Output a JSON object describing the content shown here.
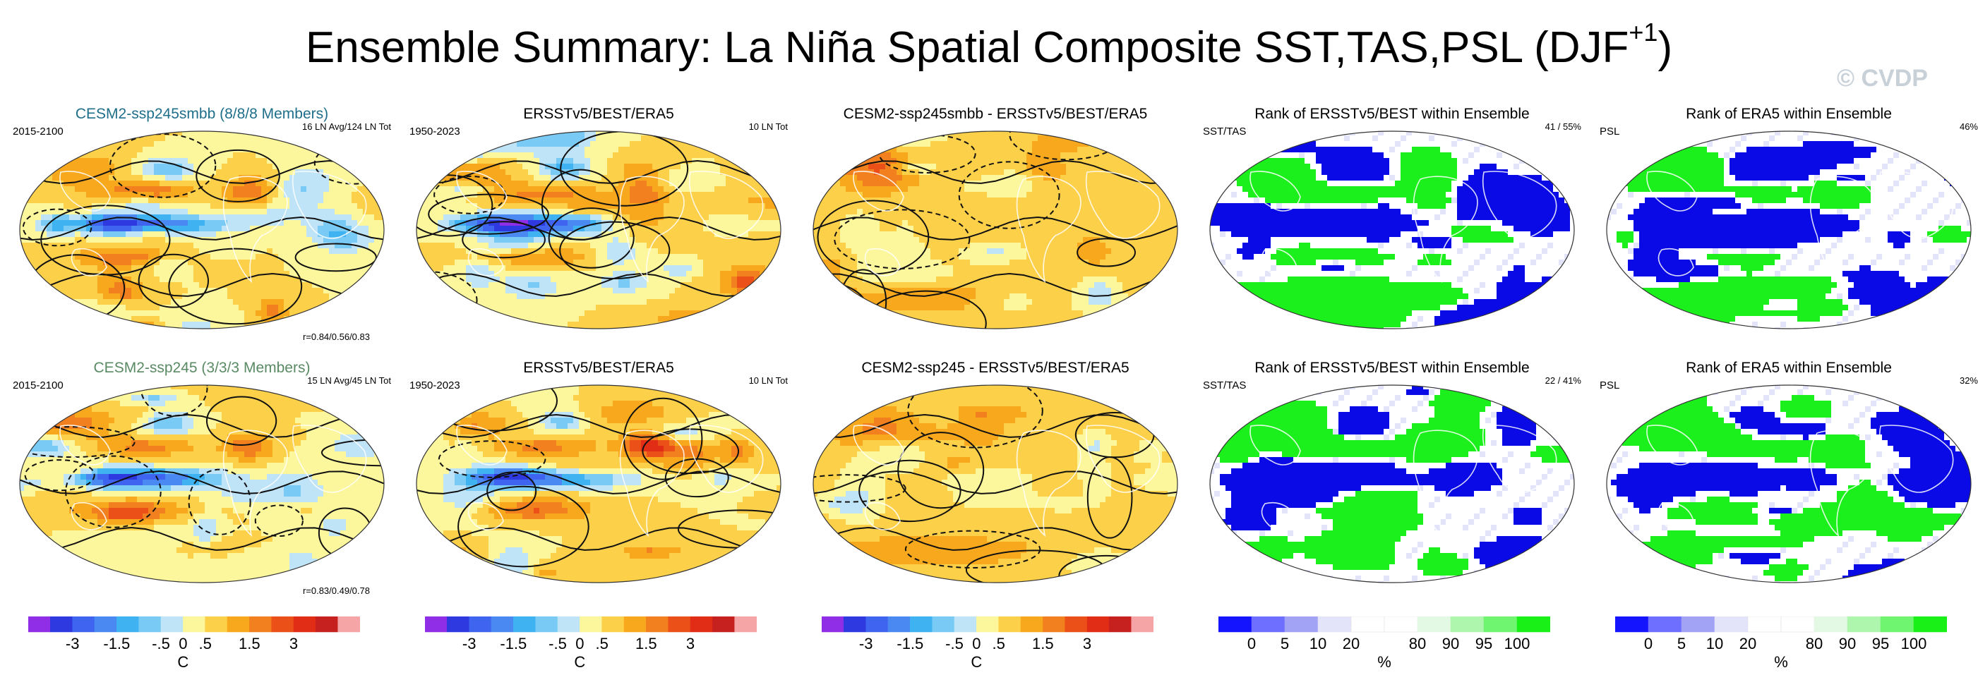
{
  "title": {
    "main": "Ensemble Summary: La Niña Spatial Composite SST,TAS,PSL (DJF",
    "sup": "+1",
    "close": ")"
  },
  "copyright": "© CVDP",
  "colors": {
    "temp_scale": [
      "#8f2ee6",
      "#2e39e0",
      "#3f64ef",
      "#4b89f2",
      "#3fb2f2",
      "#79cbf5",
      "#bfe3f7",
      "#fcf69c",
      "#fdd04a",
      "#f7a81d",
      "#f3801f",
      "#ec5019",
      "#e12d16",
      "#c6201f",
      "#f5a5a5"
    ],
    "rank_scale": [
      "#1414ff",
      "#6f6fff",
      "#a3a3f5",
      "#e3e3f9",
      "#ffffff",
      "#ffffff",
      "#e3f9e3",
      "#aef5ae",
      "#6ff56f",
      "#18f018"
    ],
    "ocean_base": "#a9d4ef",
    "rank_low": "#0a0ae6",
    "rank_high": "#1cf01c"
  },
  "panels": [
    {
      "row": 1,
      "col": 1,
      "title": "CESM2-ssp245smbb (8/8/8 Members)",
      "title_color": "teal",
      "left": "2015-2100",
      "right": "16 LN Avg/124 LN Tot",
      "bottom": "r=0.84/0.56/0.83",
      "kind": "temp"
    },
    {
      "row": 1,
      "col": 2,
      "title": "ERSSTv5/BEST/ERA5",
      "left": "1950-2023",
      "right": "10 LN Tot",
      "bottom": "",
      "kind": "temp"
    },
    {
      "row": 1,
      "col": 3,
      "title": "CESM2-ssp245smbb - ERSSTv5/BEST/ERA5",
      "left": "",
      "right": "",
      "bottom": "",
      "kind": "diff"
    },
    {
      "row": 1,
      "col": 4,
      "title": "Rank of ERSSTv5/BEST within Ensemble",
      "left": "SST/TAS",
      "right": "41 /  55%",
      "bottom": "",
      "kind": "rank"
    },
    {
      "row": 1,
      "col": 5,
      "title": "Rank of ERA5 within Ensemble",
      "left": "PSL",
      "right": "46%",
      "bottom": "",
      "kind": "rank"
    },
    {
      "row": 2,
      "col": 1,
      "title": "CESM2-ssp245 (3/3/3 Members)",
      "title_color": "green",
      "left": "2015-2100",
      "right": "15 LN Avg/45 LN Tot",
      "bottom": "r=0.83/0.49/0.78",
      "kind": "temp"
    },
    {
      "row": 2,
      "col": 2,
      "title": "ERSSTv5/BEST/ERA5",
      "left": "1950-2023",
      "right": "10 LN Tot",
      "bottom": "",
      "kind": "temp"
    },
    {
      "row": 2,
      "col": 3,
      "title": "CESM2-ssp245 - ERSSTv5/BEST/ERA5",
      "left": "",
      "right": "",
      "bottom": "",
      "kind": "diff"
    },
    {
      "row": 2,
      "col": 4,
      "title": "Rank of ERSSTv5/BEST within Ensemble",
      "left": "SST/TAS",
      "right": "22 /  41%",
      "bottom": "",
      "kind": "rank"
    },
    {
      "row": 2,
      "col": 5,
      "title": "Rank of ERA5 within Ensemble",
      "left": "PSL",
      "right": "32%",
      "bottom": "",
      "kind": "rank"
    }
  ],
  "chart_data": {
    "type": "heatmap",
    "title": "Ensemble Summary: La Niña Spatial Composite SST,TAS,PSL (DJF+1)",
    "temperature_colorbar": {
      "unit": "C",
      "levels": [
        -3.5,
        -3,
        -2.5,
        -2,
        -1.5,
        -1,
        -0.5,
        0,
        0.5,
        1,
        1.5,
        2,
        2.5,
        3,
        3.5
      ],
      "tick_labels": [
        "-3",
        "-1.5",
        "-.5",
        "0",
        ".5",
        "1.5",
        "3"
      ]
    },
    "rank_colorbar": {
      "unit": "%",
      "levels": [
        0,
        5,
        10,
        20,
        80,
        90,
        95,
        100
      ],
      "tick_labels": [
        "0",
        "5",
        "10",
        "20",
        "80",
        "90",
        "95",
        "100"
      ]
    },
    "statistics": [
      {
        "panel": "CESM2-ssp245smbb (8/8/8 Members)",
        "period": "2015-2100",
        "events": "16 LN Avg/124 LN Tot",
        "pattern_correlation": [
          0.84,
          0.56,
          0.83
        ]
      },
      {
        "panel": "ERSSTv5/BEST/ERA5",
        "period": "1950-2023",
        "events": "10 LN Tot"
      },
      {
        "panel": "CESM2-ssp245 (3/3/3 Members)",
        "period": "2015-2100",
        "events": "15 LN Avg/45 LN Tot",
        "pattern_correlation": [
          0.83,
          0.49,
          0.78
        ]
      },
      {
        "panel": "Rank of ERSSTv5/BEST within Ensemble (smbb)",
        "variables": "SST/TAS",
        "rank_summary": [
          41,
          55
        ]
      },
      {
        "panel": "Rank of ERA5 within Ensemble (smbb)",
        "variables": "PSL",
        "rank_summary_percent": 46
      },
      {
        "panel": "Rank of ERSSTv5/BEST within Ensemble (ssp245)",
        "variables": "SST/TAS",
        "rank_summary": [
          22,
          41
        ]
      },
      {
        "panel": "Rank of ERA5 within Ensemble (ssp245)",
        "variables": "PSL",
        "rank_summary_percent": 32
      }
    ]
  }
}
